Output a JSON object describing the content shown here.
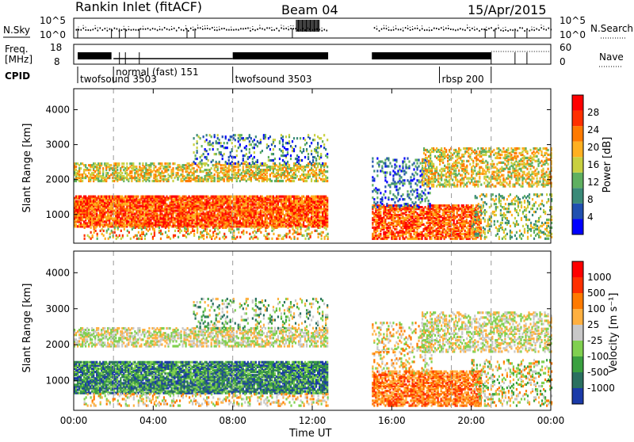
{
  "header": {
    "title": "Rankin Inlet (fitACF)",
    "beam": "Beam 04",
    "date": "15/Apr/2015"
  },
  "noise_panel": {
    "left_label": "N.Sky",
    "left_ticks": [
      "10^5",
      "10^0"
    ],
    "right_ticks": [
      "10^5",
      "10^0"
    ],
    "right_label": "N.Search"
  },
  "freq_panel": {
    "left_label_line1": "Freq.",
    "left_label_line2": "[MHz]",
    "left_ticks": [
      "18",
      "8"
    ],
    "right_ticks": [
      "60",
      "0"
    ],
    "right_label": "Nave"
  },
  "cpid": {
    "label": "CPID",
    "programs": [
      {
        "name": "twofsound 3503",
        "start_hour": 0.2
      },
      {
        "name": "normal (fast) 151",
        "start_hour": 2.0
      },
      {
        "name": "twofsound 3503",
        "start_hour": 8.0
      },
      {
        "name": "rbsp 200",
        "start_hour": 18.4
      }
    ]
  },
  "chart_data": [
    {
      "type": "heatmap",
      "name": "power",
      "ylabel": "Slant Range [km]",
      "yticks": [
        1000,
        2000,
        3000,
        4000
      ],
      "ylim": [
        180,
        4600
      ],
      "xlim": [
        0,
        24
      ],
      "colorbar": {
        "label": "Power [dB]",
        "ticks": [
          "28",
          "24",
          "20",
          "16",
          "12",
          "8",
          "4"
        ],
        "colors": [
          "#0000ff",
          "#2050b0",
          "#3a8a78",
          "#5fb060",
          "#c8d040",
          "#ffb020",
          "#ff7a00",
          "#ff3000",
          "#ff0000"
        ]
      },
      "data_gap_hours": [
        12.8,
        15.0
      ],
      "regions": [
        {
          "t0": 0.0,
          "t1": 12.8,
          "r0": 700,
          "r1": 1500,
          "level": "high"
        },
        {
          "t0": 0.0,
          "t1": 12.8,
          "r0": 1950,
          "r1": 2400,
          "level": "medium"
        },
        {
          "t0": 15.0,
          "t1": 20.5,
          "r0": 300,
          "r1": 1200,
          "level": "high"
        },
        {
          "t0": 17.5,
          "t1": 24.0,
          "r0": 1900,
          "r1": 2800,
          "level": "medium"
        }
      ]
    },
    {
      "type": "heatmap",
      "name": "velocity",
      "ylabel": "Slant Range [km]",
      "yticks": [
        1000,
        2000,
        3000,
        4000
      ],
      "ylim": [
        180,
        4600
      ],
      "xlim": [
        0,
        24
      ],
      "xlabel": "Time UT",
      "xticks": [
        "00:00",
        "04:00",
        "08:00",
        "12:00",
        "16:00",
        "20:00",
        "00:00"
      ],
      "colorbar": {
        "label": "Velocity [m s⁻¹]",
        "ticks": [
          "1000",
          "500",
          "100",
          "25",
          "-25",
          "-100",
          "-500",
          "-1000"
        ],
        "colors": [
          "#1a3aa8",
          "#2a7060",
          "#3aa040",
          "#80d050",
          "#c8c8c8",
          "#ffb040",
          "#ff7a00",
          "#ff3000",
          "#ff0000"
        ]
      },
      "data_gap_hours": [
        12.8,
        15.0
      ]
    }
  ]
}
